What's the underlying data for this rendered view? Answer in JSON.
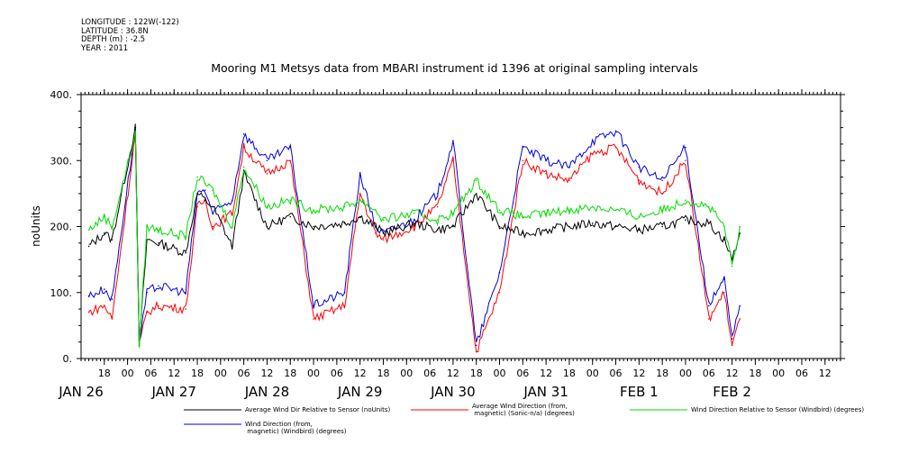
{
  "header": {
    "meta_lines": [
      "LONGITUDE : 122W(-122)",
      "LATITUDE : 36.8N",
      "DEPTH (m) : -2.5",
      "YEAR : 2011"
    ],
    "title": "Mooring M1 Metsys data from MBARI instrument id 1396 at original sampling intervals"
  },
  "chart_data": {
    "type": "line",
    "title": "Mooring M1 Metsys data from MBARI instrument id 1396 at original sampling intervals",
    "xlabel": "",
    "ylabel": "noUnits",
    "ylim": [
      0,
      400
    ],
    "xlim": [
      "2011-01-25T12:00",
      "2011-02-02T16:00"
    ],
    "y_ticks": [
      "0.",
      "100.",
      "200.",
      "300.",
      "400."
    ],
    "x_hour_ticks": [
      [
        "2011-01-25T18:00",
        "18"
      ],
      [
        "2011-01-26T00:00",
        "00"
      ],
      [
        "2011-01-26T06:00",
        "06"
      ],
      [
        "2011-01-26T12:00",
        "12"
      ],
      [
        "2011-01-26T18:00",
        "18"
      ],
      [
        "2011-01-27T00:00",
        "00"
      ],
      [
        "2011-01-27T06:00",
        "06"
      ],
      [
        "2011-01-27T12:00",
        "12"
      ],
      [
        "2011-01-27T18:00",
        "18"
      ],
      [
        "2011-01-28T00:00",
        "00"
      ],
      [
        "2011-01-28T06:00",
        "06"
      ],
      [
        "2011-01-28T12:00",
        "12"
      ],
      [
        "2011-01-28T18:00",
        "18"
      ],
      [
        "2011-01-29T00:00",
        "00"
      ],
      [
        "2011-01-29T06:00",
        "06"
      ],
      [
        "2011-01-29T12:00",
        "12"
      ],
      [
        "2011-01-29T18:00",
        "18"
      ],
      [
        "2011-01-30T00:00",
        "00"
      ],
      [
        "2011-01-30T06:00",
        "06"
      ],
      [
        "2011-01-30T12:00",
        "12"
      ],
      [
        "2011-01-30T18:00",
        "18"
      ],
      [
        "2011-01-31T00:00",
        "00"
      ],
      [
        "2011-01-31T06:00",
        "06"
      ],
      [
        "2011-01-31T12:00",
        "12"
      ],
      [
        "2011-01-31T18:00",
        "18"
      ],
      [
        "2011-02-01T00:00",
        "00"
      ],
      [
        "2011-02-01T06:00",
        "06"
      ],
      [
        "2011-02-01T12:00",
        "12"
      ],
      [
        "2011-02-01T18:00",
        "18"
      ],
      [
        "2011-02-02T00:00",
        "00"
      ],
      [
        "2011-02-02T06:00",
        "06"
      ],
      [
        "2011-02-02T12:00",
        "12"
      ]
    ],
    "x_day_labels": [
      [
        "2011-01-25T12:00",
        "JAN 26"
      ],
      [
        "2011-01-26T12:00",
        "JAN 27"
      ],
      [
        "2011-01-27T12:00",
        "JAN 28"
      ],
      [
        "2011-01-28T12:00",
        "JAN 29"
      ],
      [
        "2011-01-29T12:00",
        "JAN 30"
      ],
      [
        "2011-01-30T12:00",
        "JAN 31"
      ],
      [
        "2011-01-31T12:00",
        "FEB  1"
      ],
      [
        "2011-02-01T12:00",
        "FEB  2"
      ]
    ],
    "grid": false,
    "legend_position": "bottom",
    "series": [
      {
        "name": "Average Wind Dir Relative to Sensor (noUnits)",
        "color": "#000000",
        "x": [
          "2011-01-25T14:00",
          "2011-01-25T18:00",
          "2011-01-25T20:00",
          "2011-01-26T02:00",
          "2011-01-26T03:00",
          "2011-01-26T05:00",
          "2011-01-26T08:00",
          "2011-01-26T15:00",
          "2011-01-26T18:00",
          "2011-01-26T20:00",
          "2011-01-26T22:00",
          "2011-01-27T03:00",
          "2011-01-27T06:00",
          "2011-01-27T12:00",
          "2011-01-27T18:00",
          "2011-01-28T00:00",
          "2011-01-28T08:00",
          "2011-01-28T12:00",
          "2011-01-28T16:00",
          "2011-01-28T18:00",
          "2011-01-29T02:00",
          "2011-01-29T08:00",
          "2011-01-29T12:00",
          "2011-01-29T18:00",
          "2011-01-30T00:00",
          "2011-01-30T06:00",
          "2011-01-30T12:00",
          "2011-01-30T18:00",
          "2011-01-31T00:00",
          "2011-01-31T06:00",
          "2011-01-31T12:00",
          "2011-01-31T18:00",
          "2011-02-01T00:00",
          "2011-02-01T06:00",
          "2011-02-01T10:00",
          "2011-02-01T12:00",
          "2011-02-01T14:00"
        ],
        "values": [
          170,
          190,
          180,
          350,
          20,
          180,
          175,
          160,
          250,
          240,
          230,
          170,
          280,
          200,
          215,
          200,
          205,
          215,
          200,
          190,
          205,
          195,
          200,
          250,
          200,
          190,
          195,
          200,
          205,
          200,
          195,
          200,
          210,
          205,
          180,
          150,
          190
        ]
      },
      {
        "name": "Average Wind Direction (from, magnetic) (Sonic-n/a) (degrees)",
        "color": "#ff0000",
        "x": [
          "2011-01-25T14:00",
          "2011-01-25T18:00",
          "2011-01-25T20:00",
          "2011-01-26T02:00",
          "2011-01-26T03:00",
          "2011-01-26T05:00",
          "2011-01-26T08:00",
          "2011-01-26T15:00",
          "2011-01-26T18:00",
          "2011-01-26T20:00",
          "2011-01-26T22:00",
          "2011-01-27T03:00",
          "2011-01-27T06:00",
          "2011-01-27T12:00",
          "2011-01-27T18:00",
          "2011-01-28T00:00",
          "2011-01-28T08:00",
          "2011-01-28T12:00",
          "2011-01-28T16:00",
          "2011-01-28T18:00",
          "2011-01-29T02:00",
          "2011-01-29T08:00",
          "2011-01-29T12:00",
          "2011-01-29T18:00",
          "2011-01-30T00:00",
          "2011-01-30T06:00",
          "2011-01-30T12:00",
          "2011-01-30T18:00",
          "2011-01-31T00:00",
          "2011-01-31T06:00",
          "2011-01-31T12:00",
          "2011-01-31T18:00",
          "2011-02-01T00:00",
          "2011-02-01T06:00",
          "2011-02-01T10:00",
          "2011-02-01T12:00",
          "2011-02-01T14:00"
        ],
        "values": [
          70,
          80,
          60,
          340,
          20,
          70,
          80,
          75,
          230,
          240,
          200,
          220,
          320,
          280,
          300,
          60,
          80,
          250,
          190,
          180,
          200,
          230,
          300,
          10,
          100,
          300,
          280,
          270,
          310,
          320,
          270,
          250,
          300,
          60,
          100,
          20,
          60
        ]
      },
      {
        "name": "Wind Direction Relative to Sensor (Windbird) (degrees)",
        "color": "#00dd00",
        "x": [
          "2011-01-25T14:00",
          "2011-01-25T18:00",
          "2011-01-25T20:00",
          "2011-01-26T02:00",
          "2011-01-26T03:00",
          "2011-01-26T05:00",
          "2011-01-26T08:00",
          "2011-01-26T15:00",
          "2011-01-26T18:00",
          "2011-01-26T20:00",
          "2011-01-26T22:00",
          "2011-01-27T03:00",
          "2011-01-27T06:00",
          "2011-01-27T12:00",
          "2011-01-27T18:00",
          "2011-01-28T00:00",
          "2011-01-28T08:00",
          "2011-01-28T12:00",
          "2011-01-28T16:00",
          "2011-01-28T18:00",
          "2011-01-29T02:00",
          "2011-01-29T08:00",
          "2011-01-29T12:00",
          "2011-01-29T18:00",
          "2011-01-30T00:00",
          "2011-01-30T06:00",
          "2011-01-30T12:00",
          "2011-01-30T18:00",
          "2011-01-31T00:00",
          "2011-01-31T06:00",
          "2011-01-31T12:00",
          "2011-01-31T18:00",
          "2011-02-01T00:00",
          "2011-02-01T06:00",
          "2011-02-01T10:00",
          "2011-02-01T12:00",
          "2011-02-01T14:00"
        ],
        "values": [
          195,
          215,
          200,
          340,
          20,
          200,
          195,
          185,
          275,
          265,
          255,
          200,
          290,
          230,
          240,
          225,
          230,
          240,
          225,
          210,
          220,
          210,
          220,
          270,
          225,
          215,
          220,
          225,
          230,
          225,
          215,
          225,
          240,
          230,
          200,
          140,
          200
        ]
      },
      {
        "name": "Wind Direction (from, magnetic) (Windbird) (degrees)",
        "color": "#0000dd",
        "x": [
          "2011-01-25T14:00",
          "2011-01-25T18:00",
          "2011-01-25T20:00",
          "2011-01-26T02:00",
          "2011-01-26T03:00",
          "2011-01-26T05:00",
          "2011-01-26T08:00",
          "2011-01-26T15:00",
          "2011-01-26T18:00",
          "2011-01-26T20:00",
          "2011-01-26T22:00",
          "2011-01-27T03:00",
          "2011-01-27T06:00",
          "2011-01-27T12:00",
          "2011-01-27T18:00",
          "2011-01-28T00:00",
          "2011-01-28T08:00",
          "2011-01-28T12:00",
          "2011-01-28T16:00",
          "2011-01-28T18:00",
          "2011-01-29T02:00",
          "2011-01-29T08:00",
          "2011-01-29T12:00",
          "2011-01-29T18:00",
          "2011-01-30T00:00",
          "2011-01-30T06:00",
          "2011-01-30T12:00",
          "2011-01-30T18:00",
          "2011-01-31T00:00",
          "2011-01-31T06:00",
          "2011-01-31T12:00",
          "2011-01-31T18:00",
          "2011-02-01T00:00",
          "2011-02-01T06:00",
          "2011-02-01T10:00",
          "2011-02-01T12:00",
          "2011-02-01T14:00"
        ],
        "values": [
          95,
          105,
          90,
          350,
          20,
          100,
          110,
          100,
          250,
          255,
          220,
          240,
          340,
          300,
          320,
          80,
          100,
          280,
          200,
          190,
          210,
          250,
          330,
          20,
          130,
          320,
          300,
          290,
          330,
          345,
          290,
          270,
          320,
          80,
          120,
          30,
          80
        ]
      }
    ]
  },
  "legend": [
    {
      "label": "Average Wind Dir Relative to Sensor (noUnits)",
      "color": "#000000"
    },
    {
      "label": "Average Wind Direction (from,\n magnetic) (Sonic-n/a) (degrees)",
      "color": "#ff0000"
    },
    {
      "label": "Wind Direction Relative to Sensor (Windbird) (degrees)",
      "color": "#00dd00"
    },
    {
      "label": "Wind Direction (from,\n magnetic) (Windbird) (degrees)",
      "color": "#0000dd"
    }
  ]
}
